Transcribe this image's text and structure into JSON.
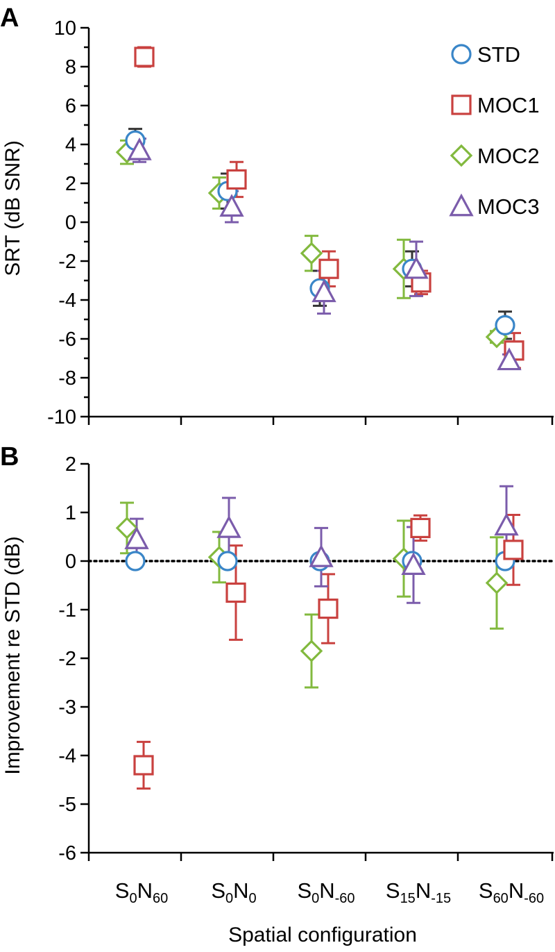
{
  "colors": {
    "STD": "#3a86c8",
    "MOC1": "#c9413f",
    "MOC2": "#82b93e",
    "MOC3": "#7b5cab",
    "axis": "#000000"
  },
  "chart_data": [
    {
      "panel": "A",
      "type": "scatter",
      "ylabel": "SRT (dB SNR)",
      "xlabel": "",
      "ylim": [
        -10,
        10
      ],
      "yticks": [
        "-10",
        "-8",
        "-6",
        "-4",
        "-2",
        "0",
        "2",
        "4",
        "6",
        "8",
        "10"
      ],
      "ytick_values": [
        -10,
        -8,
        -6,
        -4,
        -2,
        0,
        2,
        4,
        6,
        8,
        10
      ],
      "categories": [
        "S0N60",
        "S0N0",
        "S0N-60",
        "S15N-15",
        "S60N-60"
      ],
      "legend": [
        "STD",
        "MOC1",
        "MOC2",
        "MOC3"
      ],
      "series": [
        {
          "name": "STD",
          "marker": "circle",
          "values": [
            4.2,
            1.6,
            -3.4,
            -2.4,
            -5.3
          ],
          "err": [
            0.6,
            0.9,
            0.9,
            0.9,
            0.7
          ]
        },
        {
          "name": "MOC1",
          "marker": "square",
          "values": [
            8.5,
            2.2,
            -2.4,
            -3.1,
            -6.6
          ],
          "err": [
            0.5,
            0.9,
            0.9,
            0.6,
            0.9
          ]
        },
        {
          "name": "MOC2",
          "marker": "diamond",
          "values": [
            3.6,
            1.5,
            -1.6,
            -2.4,
            -5.9
          ],
          "err": [
            0.6,
            0.8,
            0.9,
            1.5,
            0.3
          ]
        },
        {
          "name": "MOC3",
          "marker": "triangle",
          "values": [
            3.7,
            0.8,
            -3.6,
            -2.4,
            -7.1
          ],
          "err": [
            0.6,
            0.8,
            1.1,
            1.4,
            0.3
          ]
        }
      ]
    },
    {
      "panel": "B",
      "type": "scatter",
      "ylabel": "Improvement re STD (dB)",
      "xlabel": "Spatial configuration",
      "ylim": [
        -6,
        2
      ],
      "yticks": [
        "-6",
        "-5",
        "-4",
        "-3",
        "-2",
        "-1",
        "0",
        "1",
        "2"
      ],
      "ytick_values": [
        -6,
        -5,
        -4,
        -3,
        -2,
        -1,
        0,
        1,
        2
      ],
      "reference_line": 0,
      "categories": [
        "S0N60",
        "S0N0",
        "S0N-60",
        "S15N-15",
        "S60N-60"
      ],
      "series": [
        {
          "name": "STD",
          "marker": "circle",
          "values": [
            0,
            0,
            0,
            0,
            0
          ],
          "err": [
            0,
            0,
            0,
            0,
            0
          ]
        },
        {
          "name": "MOC1",
          "marker": "square",
          "values": [
            -4.2,
            -0.65,
            -0.98,
            0.68,
            0.23
          ],
          "err": [
            0.48,
            0.97,
            0.71,
            0.26,
            0.72
          ]
        },
        {
          "name": "MOC2",
          "marker": "diamond",
          "values": [
            0.68,
            0.08,
            -1.85,
            0.05,
            -0.45
          ],
          "err": [
            0.52,
            0.52,
            0.75,
            0.78,
            0.94
          ]
        },
        {
          "name": "MOC3",
          "marker": "triangle",
          "values": [
            0.45,
            0.68,
            0.08,
            -0.08,
            0.73
          ],
          "err": [
            0.42,
            0.62,
            0.6,
            0.78,
            0.81
          ]
        }
      ]
    }
  ],
  "x_tick_labels": [
    {
      "S": "0",
      "N": "60"
    },
    {
      "S": "0",
      "N": "0"
    },
    {
      "S": "0",
      "N": "-60"
    },
    {
      "S": "15",
      "N": "-15"
    },
    {
      "S": "60",
      "N": "-60"
    }
  ]
}
